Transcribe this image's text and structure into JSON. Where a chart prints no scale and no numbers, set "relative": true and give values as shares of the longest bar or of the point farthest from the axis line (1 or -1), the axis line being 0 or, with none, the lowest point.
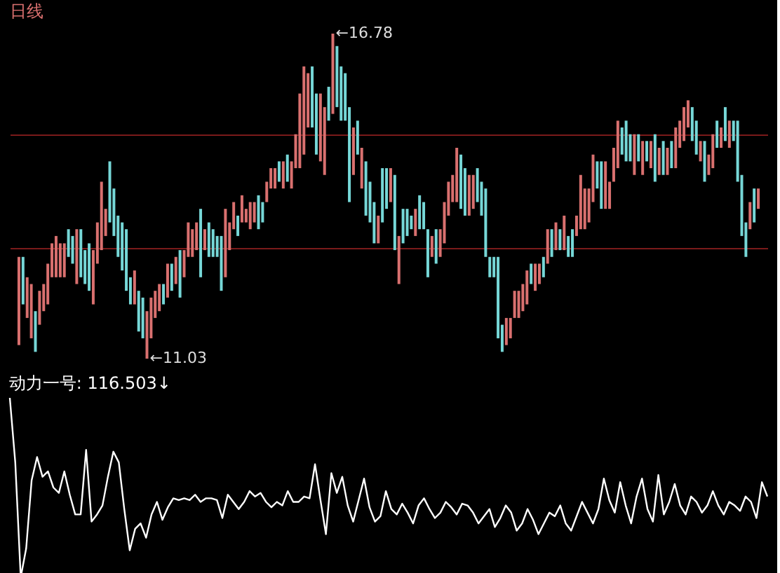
{
  "chart_data": [
    {
      "type": "candlestick",
      "title": "日线",
      "categories": [
        null,
        null,
        null,
        null,
        null,
        null,
        null,
        null,
        null,
        null,
        null,
        null,
        null,
        null,
        null,
        null,
        null,
        null,
        null,
        null,
        null,
        null,
        null,
        null,
        null,
        null,
        null,
        null,
        null,
        null,
        null,
        null,
        null,
        null,
        null,
        null,
        null,
        null,
        null,
        null,
        null,
        null,
        null,
        null,
        null,
        null,
        null,
        null,
        null,
        null,
        null,
        null,
        null,
        null,
        null,
        null,
        null,
        null,
        null,
        null,
        null,
        null,
        null,
        null,
        null,
        null,
        null,
        null,
        null,
        null,
        null,
        null,
        null,
        null,
        null,
        null,
        null,
        null,
        null,
        null,
        null,
        null,
        null,
        null,
        null,
        null,
        null,
        null,
        null,
        null,
        null,
        null,
        null,
        null,
        null,
        null,
        null,
        null,
        null,
        null,
        null,
        null,
        null,
        null,
        null,
        null,
        null,
        null,
        null,
        null,
        null,
        null,
        null,
        null,
        null,
        null,
        null,
        null,
        null,
        null,
        null,
        null,
        null,
        null,
        null,
        null,
        null,
        null,
        null,
        null,
        null,
        null,
        null,
        null,
        null,
        null,
        null,
        null,
        null,
        null,
        null,
        null,
        null,
        null,
        null,
        null,
        null,
        null,
        null,
        null,
        null,
        null,
        null,
        null,
        null,
        null,
        null,
        null,
        null,
        null,
        null,
        null,
        null,
        null,
        null,
        null,
        null,
        null,
        null,
        null,
        null,
        null,
        null,
        null,
        null,
        null,
        null,
        null,
        null,
        null
      ],
      "ohlc": [
        [
          11.27,
          12.83,
          11.27,
          12.83
        ],
        [
          12.83,
          12.83,
          11.99,
          11.99
        ],
        [
          11.75,
          12.47,
          11.75,
          12.47
        ],
        [
          11.39,
          12.35,
          11.39,
          12.35
        ],
        [
          11.87,
          11.87,
          11.15,
          11.15
        ],
        [
          11.63,
          12.23,
          11.63,
          12.23
        ],
        [
          11.87,
          12.35,
          11.87,
          12.35
        ],
        [
          11.99,
          12.71,
          11.99,
          12.71
        ],
        [
          12.47,
          13.07,
          12.47,
          13.07
        ],
        [
          12.47,
          13.2,
          12.47,
          13.2
        ],
        [
          12.47,
          13.07,
          12.47,
          13.07
        ],
        [
          12.47,
          13.07,
          12.47,
          13.07
        ],
        [
          13.32,
          13.32,
          12.83,
          12.83
        ],
        [
          13.2,
          13.2,
          12.71,
          12.71
        ],
        [
          12.35,
          13.32,
          12.35,
          13.32
        ],
        [
          13.32,
          13.32,
          12.47,
          12.47
        ],
        [
          12.95,
          12.95,
          12.35,
          12.35
        ],
        [
          13.07,
          13.07,
          12.23,
          12.23
        ],
        [
          11.99,
          12.95,
          11.99,
          12.95
        ],
        [
          12.71,
          13.44,
          12.71,
          13.44
        ],
        [
          12.95,
          14.16,
          12.95,
          14.16
        ],
        [
          13.2,
          13.68,
          13.2,
          13.68
        ],
        [
          14.52,
          14.52,
          13.44,
          13.44
        ],
        [
          14.04,
          14.04,
          13.2,
          13.2
        ],
        [
          13.56,
          13.56,
          12.83,
          12.83
        ],
        [
          13.44,
          13.44,
          12.59,
          12.59
        ],
        [
          13.32,
          13.32,
          12.23,
          12.23
        ],
        [
          12.47,
          12.47,
          11.99,
          11.99
        ],
        [
          11.99,
          12.59,
          11.99,
          12.59
        ],
        [
          12.23,
          12.23,
          11.51,
          11.51
        ],
        [
          12.11,
          12.11,
          11.39,
          11.39
        ],
        [
          11.03,
          11.87,
          11.03,
          11.87
        ],
        [
          11.39,
          12.11,
          11.39,
          12.11
        ],
        [
          11.75,
          12.23,
          11.75,
          12.23
        ],
        [
          11.87,
          12.35,
          11.87,
          12.35
        ],
        [
          12.35,
          12.35,
          11.99,
          11.99
        ],
        [
          12.11,
          12.71,
          12.11,
          12.71
        ],
        [
          12.71,
          12.71,
          12.23,
          12.23
        ],
        [
          12.35,
          12.83,
          12.35,
          12.83
        ],
        [
          12.95,
          12.95,
          12.11,
          12.11
        ],
        [
          12.47,
          12.95,
          12.47,
          12.95
        ],
        [
          12.83,
          13.44,
          12.83,
          13.44
        ],
        [
          12.83,
          13.32,
          12.83,
          13.32
        ],
        [
          12.95,
          13.44,
          12.95,
          13.44
        ],
        [
          13.68,
          13.68,
          12.47,
          12.47
        ],
        [
          12.95,
          13.32,
          12.95,
          13.32
        ],
        [
          13.44,
          13.44,
          12.83,
          12.83
        ],
        [
          13.32,
          13.32,
          12.83,
          12.83
        ],
        [
          13.2,
          13.2,
          12.83,
          12.83
        ],
        [
          13.2,
          13.2,
          12.23,
          12.23
        ],
        [
          12.47,
          13.68,
          12.47,
          13.68
        ],
        [
          12.95,
          13.44,
          12.95,
          13.44
        ],
        [
          13.32,
          13.8,
          13.32,
          13.8
        ],
        [
          13.56,
          13.56,
          13.2,
          13.2
        ],
        [
          13.44,
          13.92,
          13.44,
          13.92
        ],
        [
          13.44,
          13.68,
          13.44,
          13.68
        ],
        [
          13.32,
          13.8,
          13.32,
          13.8
        ],
        [
          13.44,
          13.8,
          13.44,
          13.8
        ],
        [
          13.92,
          13.92,
          13.32,
          13.32
        ],
        [
          13.8,
          13.8,
          13.44,
          13.44
        ],
        [
          13.8,
          14.16,
          13.8,
          14.16
        ],
        [
          14.04,
          14.4,
          14.04,
          14.4
        ],
        [
          14.04,
          14.4,
          14.04,
          14.4
        ],
        [
          14.52,
          14.52,
          14.16,
          14.16
        ],
        [
          14.04,
          14.52,
          14.04,
          14.52
        ],
        [
          14.64,
          14.64,
          14.16,
          14.16
        ],
        [
          14.04,
          14.52,
          14.04,
          14.52
        ],
        [
          14.4,
          15.0,
          14.4,
          15.0
        ],
        [
          14.4,
          15.72,
          14.4,
          15.72
        ],
        [
          14.64,
          16.2,
          14.64,
          16.2
        ],
        [
          15.12,
          16.08,
          15.12,
          16.08
        ],
        [
          16.2,
          16.2,
          15.12,
          15.12
        ],
        [
          15.72,
          15.72,
          14.64,
          14.64
        ],
        [
          14.52,
          15.72,
          14.52,
          15.72
        ],
        [
          14.28,
          15.48,
          14.28,
          15.48
        ],
        [
          15.84,
          15.84,
          15.24,
          15.24
        ],
        [
          15.36,
          16.78,
          15.36,
          16.78
        ],
        [
          16.56,
          16.56,
          15.48,
          15.48
        ],
        [
          16.2,
          16.2,
          15.24,
          15.24
        ],
        [
          16.08,
          16.08,
          15.24,
          15.24
        ],
        [
          15.48,
          15.48,
          13.8,
          13.8
        ],
        [
          14.28,
          15.12,
          14.28,
          15.12
        ],
        [
          15.24,
          15.24,
          14.64,
          14.64
        ],
        [
          14.04,
          14.76,
          14.04,
          14.76
        ],
        [
          14.52,
          14.52,
          13.56,
          13.56
        ],
        [
          14.16,
          14.16,
          13.44,
          13.44
        ],
        [
          13.8,
          13.8,
          13.07,
          13.07
        ],
        [
          13.07,
          13.56,
          13.07,
          13.56
        ],
        [
          14.4,
          14.4,
          13.44,
          13.44
        ],
        [
          14.4,
          14.4,
          13.68,
          13.68
        ],
        [
          13.8,
          14.4,
          13.8,
          14.4
        ],
        [
          14.28,
          14.28,
          12.95,
          12.95
        ],
        [
          12.35,
          13.2,
          12.35,
          13.2
        ],
        [
          13.68,
          13.68,
          13.07,
          13.07
        ],
        [
          13.68,
          13.68,
          13.2,
          13.2
        ],
        [
          13.56,
          13.56,
          13.32,
          13.32
        ],
        [
          13.2,
          13.68,
          13.2,
          13.68
        ],
        [
          13.92,
          13.92,
          13.32,
          13.32
        ],
        [
          13.8,
          13.8,
          13.32,
          13.32
        ],
        [
          13.32,
          13.32,
          12.47,
          12.47
        ],
        [
          12.83,
          13.2,
          12.83,
          13.2
        ],
        [
          13.32,
          13.32,
          12.71,
          12.71
        ],
        [
          12.83,
          13.32,
          12.83,
          13.32
        ],
        [
          13.07,
          13.8,
          13.07,
          13.8
        ],
        [
          13.56,
          14.16,
          13.56,
          14.16
        ],
        [
          13.8,
          14.28,
          13.8,
          14.28
        ],
        [
          13.8,
          14.76,
          13.8,
          14.76
        ],
        [
          14.64,
          14.64,
          13.68,
          13.68
        ],
        [
          14.4,
          14.4,
          13.56,
          13.56
        ],
        [
          13.56,
          14.28,
          13.56,
          14.28
        ],
        [
          13.68,
          14.28,
          13.68,
          14.28
        ],
        [
          14.4,
          14.4,
          13.8,
          13.8
        ],
        [
          14.16,
          14.16,
          13.56,
          13.56
        ],
        [
          14.04,
          14.04,
          12.83,
          12.83
        ],
        [
          12.83,
          12.83,
          12.47,
          12.47
        ],
        [
          12.83,
          12.83,
          12.47,
          12.47
        ],
        [
          12.83,
          12.83,
          11.39,
          11.39
        ],
        [
          11.63,
          11.63,
          11.15,
          11.15
        ],
        [
          11.27,
          11.75,
          11.27,
          11.75
        ],
        [
          11.39,
          11.75,
          11.39,
          11.75
        ],
        [
          11.75,
          12.23,
          11.75,
          12.23
        ],
        [
          11.75,
          12.23,
          11.75,
          12.23
        ],
        [
          11.87,
          12.35,
          11.87,
          12.35
        ],
        [
          11.99,
          12.59,
          11.99,
          12.59
        ],
        [
          12.71,
          12.71,
          12.35,
          12.35
        ],
        [
          12.23,
          12.71,
          12.23,
          12.71
        ],
        [
          12.35,
          12.71,
          12.35,
          12.71
        ],
        [
          12.83,
          12.83,
          12.47,
          12.47
        ],
        [
          12.71,
          13.32,
          12.71,
          13.32
        ],
        [
          13.32,
          13.32,
          12.83,
          12.83
        ],
        [
          12.95,
          13.44,
          12.95,
          13.44
        ],
        [
          13.32,
          13.32,
          12.95,
          12.95
        ],
        [
          12.95,
          13.56,
          12.95,
          13.56
        ],
        [
          13.2,
          13.2,
          12.83,
          12.83
        ],
        [
          13.32,
          13.32,
          12.83,
          12.83
        ],
        [
          13.2,
          13.56,
          13.2,
          13.56
        ],
        [
          13.32,
          14.28,
          13.32,
          14.28
        ],
        [
          13.32,
          14.04,
          13.32,
          14.04
        ],
        [
          13.44,
          14.04,
          13.44,
          14.04
        ],
        [
          13.8,
          14.64,
          13.8,
          14.64
        ],
        [
          14.52,
          14.52,
          14.04,
          14.04
        ],
        [
          14.52,
          14.52,
          13.68,
          13.68
        ],
        [
          13.68,
          14.52,
          13.68,
          14.52
        ],
        [
          13.68,
          14.16,
          13.68,
          14.16
        ],
        [
          14.16,
          14.76,
          14.16,
          14.76
        ],
        [
          14.4,
          15.24,
          14.4,
          15.24
        ],
        [
          15.12,
          15.12,
          14.64,
          14.64
        ],
        [
          15.24,
          15.24,
          14.52,
          14.52
        ],
        [
          15.0,
          15.0,
          14.52,
          14.52
        ],
        [
          14.28,
          15.0,
          14.28,
          15.0
        ],
        [
          15.0,
          15.0,
          14.52,
          14.52
        ],
        [
          14.28,
          14.88,
          14.28,
          14.88
        ],
        [
          14.88,
          14.88,
          14.52,
          14.52
        ],
        [
          14.4,
          14.88,
          14.4,
          14.88
        ],
        [
          15.0,
          15.0,
          14.16,
          14.16
        ],
        [
          14.28,
          14.76,
          14.28,
          14.76
        ],
        [
          14.88,
          14.88,
          14.28,
          14.28
        ],
        [
          14.28,
          14.76,
          14.28,
          14.76
        ],
        [
          14.88,
          14.88,
          14.4,
          14.4
        ],
        [
          14.4,
          15.12,
          14.4,
          15.12
        ],
        [
          14.76,
          15.24,
          14.76,
          15.24
        ],
        [
          14.88,
          15.48,
          14.88,
          15.48
        ],
        [
          15.12,
          15.6,
          15.12,
          15.6
        ],
        [
          15.48,
          15.48,
          14.88,
          14.88
        ],
        [
          15.24,
          15.24,
          14.64,
          14.64
        ],
        [
          14.52,
          14.88,
          14.52,
          14.88
        ],
        [
          14.88,
          14.88,
          14.16,
          14.16
        ],
        [
          14.28,
          14.64,
          14.28,
          14.64
        ],
        [
          14.4,
          15.0,
          14.4,
          15.0
        ],
        [
          15.24,
          15.24,
          14.76,
          14.76
        ],
        [
          14.76,
          15.12,
          14.76,
          15.12
        ],
        [
          15.48,
          15.48,
          14.88,
          14.88
        ],
        [
          14.76,
          15.24,
          14.76,
          15.24
        ],
        [
          15.24,
          15.24,
          14.88,
          14.88
        ],
        [
          15.24,
          15.24,
          14.16,
          14.16
        ],
        [
          14.28,
          14.28,
          13.2,
          13.2
        ],
        [
          13.44,
          13.44,
          12.83,
          12.83
        ],
        [
          13.32,
          13.8,
          13.32,
          13.8
        ],
        [
          14.04,
          14.04,
          13.44,
          13.44
        ],
        [
          13.68,
          14.04,
          13.68,
          14.04
        ]
      ],
      "colors": [
        "#d9706f",
        "#76d7d7",
        "#d9706f",
        "#d9706f",
        "#76d7d7",
        "#d9706f",
        "#d9706f",
        "#d9706f",
        "#d9706f",
        "#d9706f",
        "#d9706f",
        "#d9706f",
        "#76d7d7",
        "#76d7d7",
        "#d9706f",
        "#76d7d7",
        "#76d7d7",
        "#76d7d7",
        "#d9706f",
        "#d9706f",
        "#d9706f",
        "#d9706f",
        "#76d7d7",
        "#76d7d7",
        "#76d7d7",
        "#76d7d7",
        "#76d7d7",
        "#76d7d7",
        "#d9706f",
        "#76d7d7",
        "#76d7d7",
        "#d9706f",
        "#d9706f",
        "#d9706f",
        "#d9706f",
        "#76d7d7",
        "#d9706f",
        "#76d7d7",
        "#d9706f",
        "#76d7d7",
        "#d9706f",
        "#d9706f",
        "#d9706f",
        "#d9706f",
        "#76d7d7",
        "#d9706f",
        "#76d7d7",
        "#76d7d7",
        "#76d7d7",
        "#76d7d7",
        "#d9706f",
        "#d9706f",
        "#d9706f",
        "#76d7d7",
        "#d9706f",
        "#d9706f",
        "#d9706f",
        "#d9706f",
        "#76d7d7",
        "#76d7d7",
        "#d9706f",
        "#d9706f",
        "#d9706f",
        "#76d7d7",
        "#d9706f",
        "#76d7d7",
        "#d9706f",
        "#d9706f",
        "#d9706f",
        "#d9706f",
        "#d9706f",
        "#76d7d7",
        "#76d7d7",
        "#d9706f",
        "#d9706f",
        "#76d7d7",
        "#d9706f",
        "#76d7d7",
        "#76d7d7",
        "#76d7d7",
        "#76d7d7",
        "#d9706f",
        "#76d7d7",
        "#d9706f",
        "#76d7d7",
        "#76d7d7",
        "#76d7d7",
        "#d9706f",
        "#76d7d7",
        "#76d7d7",
        "#d9706f",
        "#76d7d7",
        "#d9706f",
        "#76d7d7",
        "#76d7d7",
        "#76d7d7",
        "#d9706f",
        "#76d7d7",
        "#76d7d7",
        "#76d7d7",
        "#d9706f",
        "#76d7d7",
        "#d9706f",
        "#d9706f",
        "#d9706f",
        "#d9706f",
        "#d9706f",
        "#76d7d7",
        "#76d7d7",
        "#d9706f",
        "#d9706f",
        "#76d7d7",
        "#76d7d7",
        "#76d7d7",
        "#76d7d7",
        "#76d7d7",
        "#76d7d7",
        "#76d7d7",
        "#d9706f",
        "#d9706f",
        "#d9706f",
        "#d9706f",
        "#d9706f",
        "#d9706f",
        "#76d7d7",
        "#d9706f",
        "#d9706f",
        "#76d7d7",
        "#d9706f",
        "#76d7d7",
        "#d9706f",
        "#76d7d7",
        "#d9706f",
        "#76d7d7",
        "#76d7d7",
        "#d9706f",
        "#d9706f",
        "#d9706f",
        "#d9706f",
        "#d9706f",
        "#76d7d7",
        "#76d7d7",
        "#d9706f",
        "#d9706f",
        "#d9706f",
        "#d9706f",
        "#76d7d7",
        "#76d7d7",
        "#76d7d7",
        "#d9706f",
        "#76d7d7",
        "#d9706f",
        "#76d7d7",
        "#d9706f",
        "#76d7d7",
        "#d9706f",
        "#76d7d7",
        "#d9706f",
        "#76d7d7",
        "#d9706f",
        "#d9706f",
        "#d9706f",
        "#d9706f",
        "#76d7d7",
        "#76d7d7",
        "#d9706f",
        "#76d7d7",
        "#d9706f",
        "#d9706f",
        "#76d7d7",
        "#d9706f",
        "#76d7d7",
        "#d9706f",
        "#76d7d7",
        "#76d7d7",
        "#76d7d7",
        "#76d7d7",
        "#d9706f",
        "#76d7d7",
        "#d9706f"
      ],
      "yticks": [
        {
          "value": 13,
          "label": null
        },
        {
          "value": 15,
          "label": null
        }
      ],
      "grid": "y",
      "tick_labels": false,
      "annotations": [
        "←16.78",
        "←11.03"
      ]
    },
    {
      "type": "line",
      "title": "动力一号: 116.503↓",
      "relative": true,
      "categories": [
        null,
        null,
        null,
        null,
        null,
        null,
        null,
        null,
        null,
        null,
        null,
        null,
        null,
        null,
        null,
        null,
        null,
        null,
        null,
        null,
        null,
        null,
        null,
        null,
        null,
        null,
        null,
        null,
        null,
        null,
        null,
        null,
        null,
        null,
        null,
        null,
        null,
        null,
        null,
        null,
        null,
        null,
        null,
        null,
        null,
        null,
        null,
        null,
        null,
        null,
        null,
        null,
        null,
        null,
        null,
        null,
        null,
        null,
        null,
        null,
        null,
        null,
        null,
        null,
        null,
        null,
        null,
        null,
        null,
        null,
        null,
        null,
        null,
        null,
        null,
        null,
        null,
        null,
        null,
        null,
        null,
        null,
        null,
        null,
        null,
        null,
        null,
        null,
        null,
        null,
        null,
        null,
        null,
        null,
        null,
        null,
        null,
        null,
        null,
        null,
        null,
        null,
        null,
        null,
        null,
        null,
        null,
        null,
        null,
        null,
        null,
        null,
        null,
        null,
        null,
        null,
        null,
        null,
        null,
        null,
        null,
        null,
        null,
        null,
        null,
        null,
        null,
        null,
        null,
        null,
        null,
        null,
        null,
        null,
        null,
        null,
        null,
        null,
        null,
        null
      ],
      "series": [
        {
          "color": "#ffffff",
          "values": [
            1.0,
            0.64,
            0,
            0.16,
            0.54,
            0.67,
            0.56,
            0.59,
            0.5,
            0.47,
            0.59,
            0.46,
            0.35,
            0.35,
            0.71,
            0.31,
            0.35,
            0.4,
            0.56,
            0.7,
            0.64,
            0.38,
            0.15,
            0.27,
            0.3,
            0.22,
            0.35,
            0.42,
            0.32,
            0.39,
            0.44,
            0.43,
            0.44,
            0.43,
            0.46,
            0.42,
            0.44,
            0.44,
            0.43,
            0.33,
            0.46,
            0.42,
            0.38,
            0.42,
            0.48,
            0.45,
            0.47,
            0.42,
            0.39,
            0.42,
            0.4,
            0.48,
            0.42,
            0.42,
            0.45,
            0.44,
            0.63,
            0.43,
            0.24,
            0.58,
            0.47,
            0.56,
            0.4,
            0.31,
            0.43,
            0.55,
            0.39,
            0.31,
            0.34,
            0.48,
            0.38,
            0.35,
            0.41,
            0.36,
            0.3,
            0.4,
            0.44,
            0.38,
            0.33,
            0.36,
            0.42,
            0.39,
            0.35,
            0.41,
            0.4,
            0.36,
            0.3,
            0.34,
            0.38,
            0.28,
            0.33,
            0.4,
            0.36,
            0.26,
            0.3,
            0.38,
            0.32,
            0.24,
            0.3,
            0.36,
            0.34,
            0.4,
            0.3,
            0.26,
            0.34,
            0.42,
            0.36,
            0.3,
            0.38,
            0.55,
            0.43,
            0.36,
            0.53,
            0.4,
            0.3,
            0.45,
            0.55,
            0.38,
            0.31,
            0.57,
            0.35,
            0.42,
            0.52,
            0.4,
            0.35,
            0.45,
            0.42,
            0.36,
            0.4,
            0.48,
            0.4,
            0.35,
            0.42,
            0.4,
            0.37,
            0.45,
            0.42,
            0.33,
            0.53,
            0.45
          ]
        }
      ]
    }
  ]
}
